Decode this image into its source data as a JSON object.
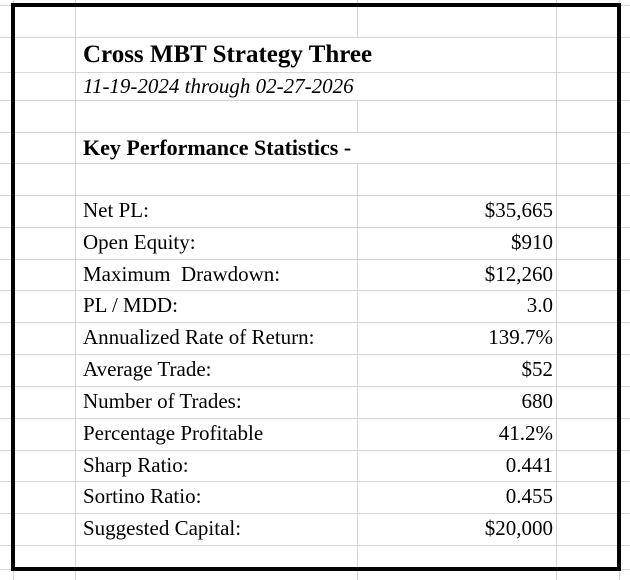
{
  "report": {
    "title": "Cross MBT Strategy Three",
    "date_range": "11-19-2024 through 02-27-2026",
    "section_header": "Key Performance Statistics -",
    "stats": [
      {
        "label": "Net PL:",
        "value": "$35,665"
      },
      {
        "label": "Open Equity:",
        "value": "$910"
      },
      {
        "label": "Maximum  Drawdown:",
        "value": "$12,260"
      },
      {
        "label": "PL / MDD:",
        "value": "3.0"
      },
      {
        "label": "Annualized Rate of Return:",
        "value": "139.7%"
      },
      {
        "label": "Average Trade:",
        "value": "$52"
      },
      {
        "label": "Number of Trades:",
        "value": "680"
      },
      {
        "label": "Percentage Profitable",
        "value": "41.2%"
      },
      {
        "label": "Sharp Ratio:",
        "value": "0.441"
      },
      {
        "label": "Sortino Ratio:",
        "value": "0.455"
      },
      {
        "label": "Suggested Capital:",
        "value": "$20,000"
      }
    ],
    "colors": {
      "background": "#ffffff",
      "text": "#000000",
      "border": "#000000",
      "gridline": "#d4d4d4"
    }
  }
}
